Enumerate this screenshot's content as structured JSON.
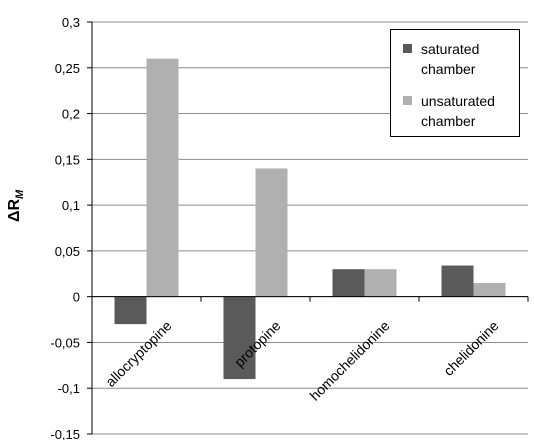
{
  "chart_data": {
    "type": "bar",
    "categories": [
      "allocryptopine",
      "protopine",
      "homochelidonine",
      "chelidonine"
    ],
    "series": [
      {
        "name": "saturated chamber",
        "values": [
          -0.03,
          -0.09,
          0.03,
          0.034
        ],
        "color": "#5a5a5a"
      },
      {
        "name": "unsaturated chamber",
        "values": [
          0.26,
          0.14,
          0.03,
          0.015
        ],
        "color": "#b0b0b0"
      }
    ],
    "ylabel_main": "ΔR",
    "ylabel_sub": "M",
    "ylim": [
      -0.15,
      0.3
    ],
    "yticks": [
      {
        "value": 0.3,
        "label": "0,3"
      },
      {
        "value": 0.25,
        "label": "0,25"
      },
      {
        "value": 0.2,
        "label": "0,2"
      },
      {
        "value": 0.15,
        "label": "0,15"
      },
      {
        "value": 0.1,
        "label": "0,1"
      },
      {
        "value": 0.05,
        "label": "0,05"
      },
      {
        "value": 0,
        "label": "0"
      },
      {
        "value": -0.05,
        "label": "-0,05"
      },
      {
        "value": -0.1,
        "label": "-0,1"
      },
      {
        "value": -0.15,
        "label": "-0,15"
      }
    ],
    "grid": true,
    "legend_position": "top-right"
  }
}
